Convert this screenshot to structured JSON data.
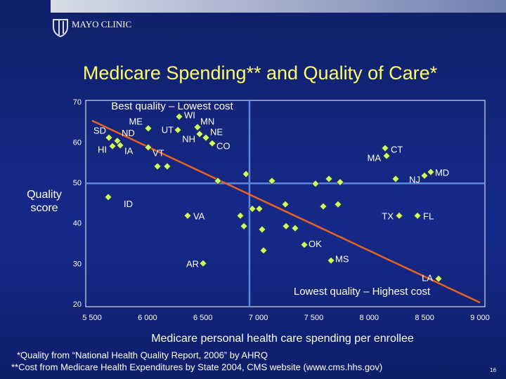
{
  "header": {
    "logo": "MAYO CLINIC"
  },
  "chart_data": {
    "type": "scatter",
    "title": "Medicare Spending** and Quality of Care*",
    "xlabel": "Medicare personal health care spending per enrollee",
    "ylabel": "Quality score",
    "annotations": [
      "Best quality – Lowest cost",
      "Lowest quality – Highest cost"
    ],
    "xlim": [
      5500,
      9000
    ],
    "ylim": [
      20,
      70
    ],
    "xticks": [
      {
        "value": 5500,
        "label": "5 500"
      },
      {
        "value": 6000,
        "label": "6 000"
      },
      {
        "value": 6500,
        "label": "6 500"
      },
      {
        "value": 7000,
        "label": "7 000"
      },
      {
        "value": 7500,
        "label": "7 500"
      },
      {
        "value": 8000,
        "label": "8 000"
      },
      {
        "value": 8500,
        "label": "8 500"
      },
      {
        "value": 9000,
        "label": "9 000"
      }
    ],
    "yticks": [
      20,
      30,
      40,
      50,
      60,
      70
    ],
    "color": "#ccff66",
    "trend_color": "#e8641e",
    "reference_color": "#5f86e0",
    "vline": 6920,
    "hline": 50,
    "trend": {
      "x": [
        5500,
        9000
      ],
      "y": [
        65.5,
        20.5
      ]
    },
    "labels": [
      "SD",
      "ND",
      "HI",
      "IA",
      "ME",
      "WI",
      "UT",
      "MN",
      "NH",
      "NE",
      "CO",
      "VT",
      "CT",
      "MA",
      "NJ",
      "MD",
      "ID",
      "VA",
      "TX",
      "FL",
      "OK",
      "MS",
      "AR",
      "LA",
      null,
      null,
      null,
      null,
      null,
      null,
      null,
      null,
      null,
      null,
      null,
      null,
      null,
      null,
      null,
      null,
      null,
      null,
      null,
      null
    ],
    "x": [
      5652,
      5728,
      5684,
      5754,
      6007,
      6286,
      6274,
      6451,
      6470,
      6527,
      6584,
      6007,
      8144,
      8157,
      8499,
      8556,
      5646,
      6362,
      8271,
      8436,
      7415,
      7656,
      6502,
      8626,
      6090,
      6178,
      6889,
      6635,
      7123,
      7516,
      7637,
      7738,
      8239,
      6946,
      7009,
      7244,
      7586,
      7719,
      6838,
      6870,
      7034,
      7250,
      7332,
      7047
    ],
    "y": [
      61.3,
      60.5,
      59.2,
      59.4,
      63.6,
      66.5,
      63.2,
      63.9,
      62.2,
      61.3,
      59.9,
      58.9,
      58.7,
      56.8,
      51.9,
      52.8,
      46.6,
      42.0,
      42.0,
      42.0,
      34.8,
      30.9,
      30.2,
      26.4,
      54.2,
      54.2,
      52.3,
      50.6,
      50.6,
      49.9,
      51.1,
      50.3,
      51.1,
      43.7,
      43.7,
      44.8,
      44.3,
      44.8,
      42.0,
      39.4,
      38.6,
      39.4,
      38.9,
      33.4
    ]
  },
  "footnotes": [
    "*Quality from “National Health Quality Report, 2006” by AHRQ",
    "**Cost from Medicare Health Expenditures by State 2004, CMS website (www.cms.hhs.gov)"
  ],
  "page_number": "16"
}
